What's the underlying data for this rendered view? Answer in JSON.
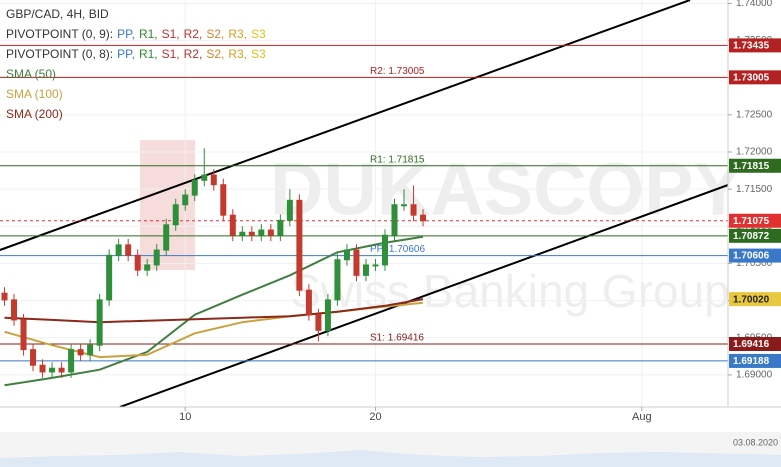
{
  "chart_data": {
    "type": "candlestick",
    "title": "GBP/CAD, 4H, BID",
    "xlim": [
      0.263,
      38.53
    ],
    "ylim": [
      1.68568,
      1.74046
    ],
    "xticks": [
      10,
      20,
      {
        "value": 34,
        "label": "Aug"
      }
    ],
    "yticks": [
      {
        "value": 1.69,
        "label": "1.69000"
      },
      {
        "value": 1.695,
        "label": "1.69500"
      },
      {
        "value": 1.7,
        "label": "1.70000"
      },
      {
        "value": 1.705,
        "label": "1.70500"
      },
      {
        "value": 1.71,
        "label": "1.71000"
      },
      {
        "value": 1.715,
        "label": "1.71500"
      },
      {
        "value": 1.72,
        "label": "1.72000"
      },
      {
        "value": 1.725,
        "label": "1.72500"
      },
      {
        "value": 1.73,
        "label": "1.73000"
      },
      {
        "value": 1.735,
        "label": "1.73500"
      },
      {
        "value": 1.74,
        "label": "1.74000"
      }
    ],
    "grid": true,
    "up_color": "#2f8f3a",
    "down_color": "#c23b2e",
    "x": [
      0.5,
      1,
      1.5,
      2,
      2.5,
      3,
      3.5,
      4,
      4.5,
      5,
      5.5,
      6,
      6.5,
      7,
      7.5,
      8,
      8.5,
      9,
      9.5,
      10,
      10.5,
      11,
      11.5,
      12,
      12.5,
      13,
      13.5,
      14,
      14.5,
      15,
      15.5,
      16,
      16.5,
      17,
      17.5,
      18,
      18.5,
      19,
      19.5,
      20,
      20.5,
      21,
      21.5,
      22,
      22.5
    ],
    "open": [
      1.701,
      1.7001,
      1.6974,
      1.6934,
      1.6913,
      1.6904,
      1.6909,
      1.6904,
      1.6934,
      1.6927,
      1.694,
      1.7001,
      1.7061,
      1.7075,
      1.7061,
      1.7041,
      1.7048,
      1.7068,
      1.7102,
      1.7129,
      1.7142,
      1.7162,
      1.7169,
      1.7156,
      1.7115,
      1.7088,
      1.7092,
      1.7088,
      1.7095,
      1.7088,
      1.7108,
      1.7135,
      1.7014,
      1.6981,
      1.696,
      1.7001,
      1.7055,
      1.7068,
      1.7034,
      1.7048,
      1.7048,
      1.7088,
      1.7129,
      1.7129,
      1.7115
    ],
    "high": [
      1.7018,
      1.7009,
      1.6982,
      1.6942,
      1.6921,
      1.6917,
      1.6917,
      1.6942,
      1.6942,
      1.6948,
      1.7009,
      1.7069,
      1.7083,
      1.7083,
      1.7069,
      1.7056,
      1.7076,
      1.711,
      1.7137,
      1.715,
      1.717,
      1.7205,
      1.7177,
      1.7164,
      1.7123,
      1.71,
      1.71,
      1.7103,
      1.7103,
      1.7116,
      1.715,
      1.7143,
      1.7022,
      1.6989,
      1.7009,
      1.7063,
      1.7076,
      1.7076,
      1.7056,
      1.7056,
      1.7096,
      1.7137,
      1.715,
      1.7155,
      1.7123
    ],
    "low": [
      1.6993,
      1.6966,
      1.6926,
      1.6905,
      1.6896,
      1.6896,
      1.6896,
      1.6896,
      1.6919,
      1.6919,
      1.6932,
      1.6993,
      1.7053,
      1.7053,
      1.7033,
      1.7033,
      1.704,
      1.706,
      1.7094,
      1.7121,
      1.7134,
      1.7154,
      1.7148,
      1.7107,
      1.708,
      1.708,
      1.708,
      1.708,
      1.708,
      1.708,
      1.71,
      1.7006,
      1.6973,
      1.6945,
      1.6952,
      1.6993,
      1.7047,
      1.7026,
      1.7026,
      1.704,
      1.704,
      1.708,
      1.7121,
      1.7107,
      1.71
    ],
    "close": [
      1.7001,
      1.6974,
      1.6934,
      1.6913,
      1.6904,
      1.6909,
      1.6904,
      1.6934,
      1.6927,
      1.694,
      1.7001,
      1.7061,
      1.7075,
      1.7061,
      1.7041,
      1.7048,
      1.7068,
      1.7102,
      1.7129,
      1.7142,
      1.7162,
      1.7169,
      1.7156,
      1.7115,
      1.7088,
      1.7092,
      1.7088,
      1.7095,
      1.7088,
      1.7108,
      1.7135,
      1.7014,
      1.6981,
      1.696,
      1.7001,
      1.7055,
      1.7068,
      1.7034,
      1.7048,
      1.7048,
      1.7088,
      1.7129,
      1.7129,
      1.7115,
      1.71075
    ],
    "indicators": [
      {
        "name": "SMA (50)",
        "color": "#3f7f3f",
        "x": [
          0.5,
          3,
          5.5,
          8,
          10.5,
          13,
          15.5,
          18,
          20.5,
          22.5
        ],
        "values": [
          1.6886,
          1.6896,
          1.6907,
          1.6931,
          1.6981,
          1.7008,
          1.7034,
          1.7065,
          1.7078,
          1.7086
        ]
      },
      {
        "name": "SMA (100)",
        "color": "#c9a23f",
        "x": [
          0.5,
          3,
          5.5,
          8,
          10.5,
          13,
          15.5,
          18,
          20.5,
          22.5
        ],
        "values": [
          1.6958,
          1.694,
          1.6924,
          1.6927,
          1.6956,
          1.6971,
          1.6979,
          1.6985,
          1.6992,
          1.6997
        ]
      },
      {
        "name": "SMA (200)",
        "color": "#8b2a1a",
        "x": [
          0.5,
          3,
          5.5,
          8,
          10.5,
          13,
          15.5,
          18,
          20.5,
          22.5
        ],
        "values": [
          1.6977,
          1.6974,
          1.6971,
          1.6973,
          1.6975,
          1.6977,
          1.6979,
          1.6985,
          1.6993,
          1.7002
        ]
      }
    ],
    "pivot_legends": [
      {
        "text": "PIVOTPOINT (0, 9):",
        "items": [
          {
            "text": "PP,",
            "color": "#3a78c8"
          },
          {
            "text": "R1,",
            "color": "#2e8b2e"
          },
          {
            "text": "S1,",
            "color": "#c03030"
          },
          {
            "text": "R2,",
            "color": "#c03030"
          },
          {
            "text": "S2,",
            "color": "#d9822b"
          },
          {
            "text": "R3,",
            "color": "#d9a020"
          },
          {
            "text": "S3",
            "color": "#e0c020"
          }
        ]
      },
      {
        "text": "PIVOTPOINT (0, 8):",
        "items": [
          {
            "text": "PP,",
            "color": "#3a78c8"
          },
          {
            "text": "R1,",
            "color": "#2e8b2e"
          },
          {
            "text": "S1,",
            "color": "#c03030"
          },
          {
            "text": "R2,",
            "color": "#c03030"
          },
          {
            "text": "S2,",
            "color": "#d9822b"
          },
          {
            "text": "R3,",
            "color": "#d9a020"
          },
          {
            "text": "S3",
            "color": "#e0c020"
          }
        ]
      }
    ],
    "levels": [
      {
        "value": 1.73435,
        "color": "#b22222"
      },
      {
        "value": 1.73005,
        "label": "R2: 1.73005",
        "color": "#b22222"
      },
      {
        "value": 1.71815,
        "label": "R1: 1.71815",
        "color": "#2e6b1f"
      },
      {
        "value": 1.71075,
        "color": "#e03030",
        "dashed": true
      },
      {
        "value": 1.70872,
        "color": "#2e6b1f"
      },
      {
        "value": 1.70606,
        "label": "PP: 1.70606",
        "color": "#3a78c8"
      },
      {
        "value": 1.7002,
        "value_label": "1.70020",
        "color": "#e8c840",
        "line": false
      },
      {
        "value": 1.69416,
        "label": "S1: 1.69416",
        "color": "#8b1a1a"
      },
      {
        "value": 1.69188,
        "color": "#3a78c8"
      }
    ],
    "watermark": [
      "DUKASCOPY",
      "Swiss Banking Group"
    ],
    "date_label": "03.08.2020"
  }
}
